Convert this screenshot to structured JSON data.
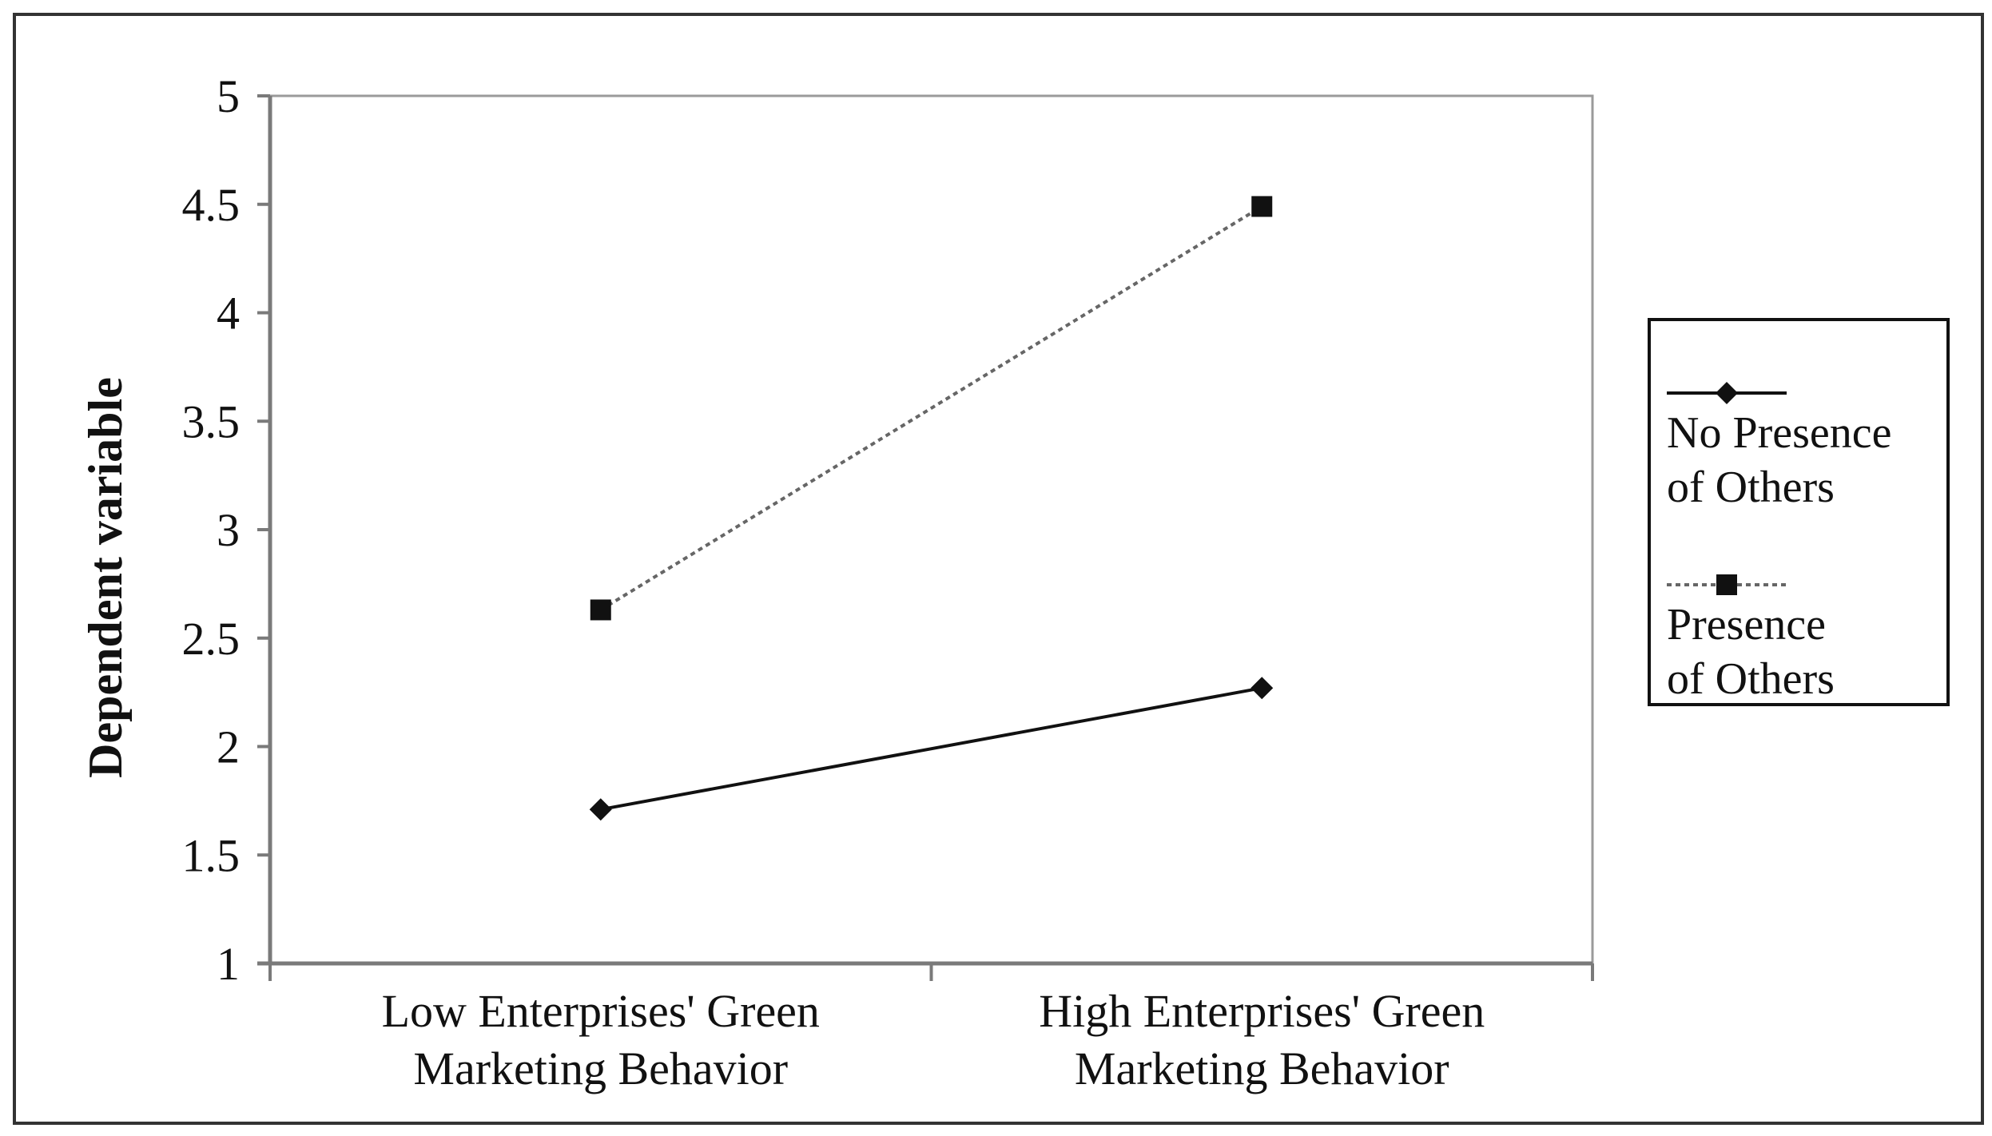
{
  "chart_data": {
    "type": "line",
    "title": "",
    "ylabel": "Dependent variable",
    "xlabel": "",
    "ylim": [
      1,
      5
    ],
    "yticks": [
      "1",
      "1.5",
      "2",
      "2.5",
      "3",
      "3.5",
      "4",
      "4.5",
      "5"
    ],
    "categories": [
      [
        "Low Enterprises' Green",
        "Marketing Behavior"
      ],
      [
        "High Enterprises' Green",
        "Marketing Behavior"
      ]
    ],
    "grid": false,
    "legend_position": "right",
    "series": [
      {
        "name_lines": [
          "No Presence",
          "of Others"
        ],
        "values": [
          1.71,
          2.27
        ],
        "marker": "diamond",
        "line_style": "solid",
        "color": "#111111"
      },
      {
        "name_lines": [
          "Presence",
          "of Others"
        ],
        "values": [
          2.63,
          4.49
        ],
        "marker": "square",
        "line_style": "dotted",
        "color": "#666666"
      }
    ]
  }
}
